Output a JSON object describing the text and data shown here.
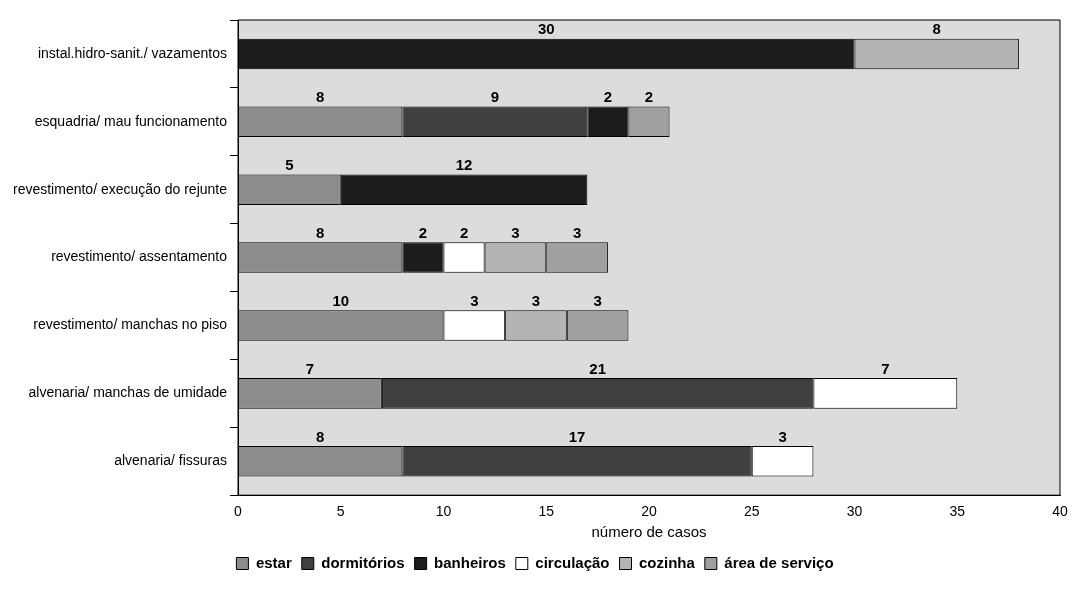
{
  "chart_data": {
    "type": "bar",
    "orientation": "horizontal",
    "stacked": true,
    "xlabel": "número de casos",
    "categories": [
      "instal.hidro-sanit./ vazamentos",
      "esquadria/ mau funcionamento",
      "revestimento/ execução do rejunte",
      "revestimento/ assentamento",
      "revestimento/ manchas no piso",
      "alvenaria/ manchas de umidade",
      "alvenaria/ fissuras"
    ],
    "series": [
      {
        "name": "estar",
        "color": "#8c8c8c",
        "values": [
          null,
          8,
          5,
          8,
          10,
          7,
          8
        ]
      },
      {
        "name": "dormitórios",
        "color": "#404040",
        "values": [
          null,
          9,
          null,
          null,
          null,
          21,
          17
        ]
      },
      {
        "name": "banheiros",
        "color": "#1c1c1c",
        "values": [
          30,
          2,
          12,
          2,
          null,
          null,
          null
        ]
      },
      {
        "name": "circulação",
        "color": "#ffffff",
        "values": [
          null,
          null,
          null,
          2,
          3,
          7,
          3
        ]
      },
      {
        "name": "cozinha",
        "color": "#b4b4b4",
        "values": [
          8,
          null,
          null,
          3,
          3,
          null,
          null
        ]
      },
      {
        "name": "área de serviço",
        "color": "#a0a0a0",
        "values": [
          null,
          2,
          null,
          3,
          3,
          null,
          null
        ]
      }
    ],
    "xlim": [
      0,
      40
    ],
    "xticks": [
      0,
      5,
      10,
      15,
      20,
      25,
      30,
      35,
      40
    ],
    "grid": false,
    "legend": "bottom",
    "data_labels": true
  }
}
